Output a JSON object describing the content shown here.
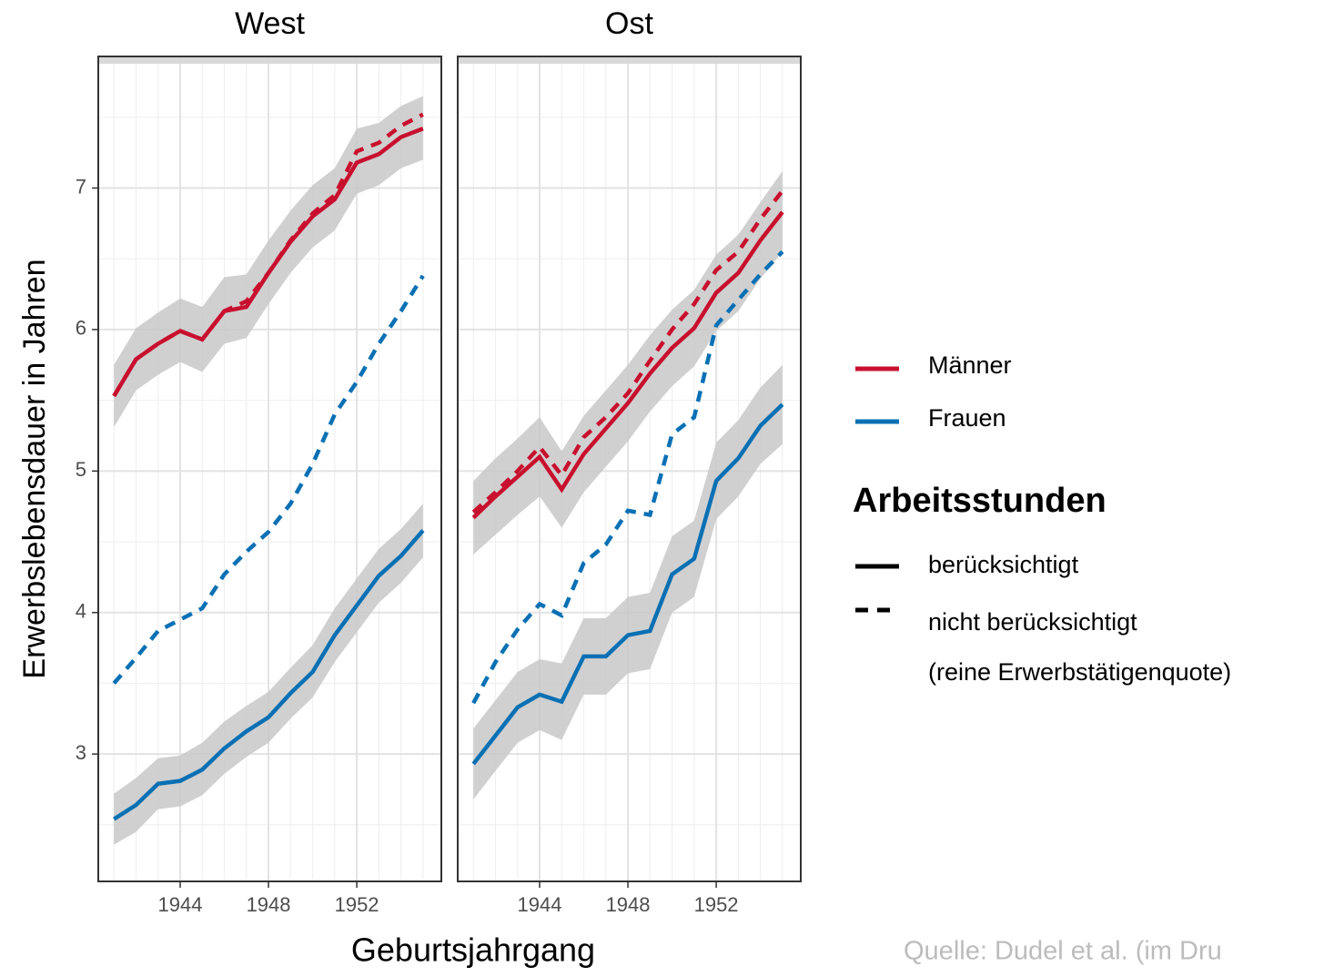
{
  "chart_data": {
    "type": "line",
    "xlabel": "Geburtsjahrgang",
    "ylabel": "Erwerbslebensdauer in Jahren",
    "source": "Quelle: Dudel et al. (im Dru",
    "x": [
      1941,
      1942,
      1943,
      1944,
      1945,
      1946,
      1947,
      1948,
      1949,
      1950,
      1951,
      1952,
      1953,
      1954,
      1955
    ],
    "xlim": [
      1940.29,
      1955.83
    ],
    "ylim": [
      2.1,
      7.93
    ],
    "xticks": [
      1944,
      1948,
      1952
    ],
    "yticks": [
      3,
      4,
      5,
      6,
      7
    ],
    "xminorticks": [
      1941,
      1942,
      1943,
      1945,
      1946,
      1947,
      1949,
      1950,
      1951,
      1953,
      1954,
      1955
    ],
    "yminorticks": [
      2.5,
      3.5,
      4.5,
      5.5,
      6.5,
      7.5
    ],
    "grid": true,
    "legend": {
      "colors": [
        {
          "label": "Männer",
          "color": "#c8102e"
        },
        {
          "label": "Frauen",
          "color": "#0a70b4"
        }
      ],
      "linetypes": {
        "title": "Arbeitsstunden",
        "items": [
          {
            "label": "berücksichtigt",
            "dashed": false
          },
          {
            "label": "nicht berücksichtigt",
            "note": "(reine Erwerbstätigenquote)",
            "dashed": true
          }
        ]
      }
    },
    "panels": [
      {
        "title": "West",
        "series": [
          {
            "group": 0,
            "linetype": 0,
            "values": [
              5.53,
              5.79,
              5.9,
              5.99,
              5.93,
              6.13,
              6.16,
              6.4,
              6.62,
              6.8,
              6.92,
              7.18,
              7.24,
              7.36,
              7.42
            ],
            "lower": [
              5.31,
              5.57,
              5.68,
              5.77,
              5.7,
              5.9,
              5.94,
              6.18,
              6.4,
              6.58,
              6.7,
              6.96,
              7.02,
              7.14,
              7.2
            ],
            "upper": [
              5.75,
              6.01,
              6.12,
              6.22,
              6.16,
              6.37,
              6.39,
              6.63,
              6.84,
              7.02,
              7.14,
              7.42,
              7.46,
              7.58,
              7.65
            ]
          },
          {
            "group": 0,
            "linetype": 1,
            "values": [
              5.53,
              5.79,
              5.9,
              5.99,
              5.93,
              6.13,
              6.2,
              6.4,
              6.63,
              6.82,
              6.95,
              7.26,
              7.32,
              7.44,
              7.52
            ]
          },
          {
            "group": 1,
            "linetype": 0,
            "values": [
              2.54,
              2.64,
              2.79,
              2.81,
              2.89,
              3.04,
              3.16,
              3.26,
              3.43,
              3.58,
              3.84,
              4.05,
              4.26,
              4.4,
              4.58
            ],
            "lower": [
              2.36,
              2.45,
              2.61,
              2.63,
              2.71,
              2.86,
              2.98,
              3.08,
              3.25,
              3.4,
              3.65,
              3.86,
              4.07,
              4.21,
              4.39
            ],
            "upper": [
              2.72,
              2.83,
              2.97,
              2.99,
              3.08,
              3.23,
              3.34,
              3.44,
              3.61,
              3.77,
              4.03,
              4.24,
              4.45,
              4.59,
              4.77
            ]
          },
          {
            "group": 1,
            "linetype": 1,
            "values": [
              3.5,
              3.68,
              3.87,
              3.95,
              4.03,
              4.27,
              4.43,
              4.57,
              4.77,
              5.05,
              5.4,
              5.63,
              5.9,
              6.13,
              6.38
            ]
          }
        ]
      },
      {
        "title": "Ost",
        "series": [
          {
            "group": 0,
            "linetype": 0,
            "values": [
              4.67,
              4.82,
              4.96,
              5.1,
              4.87,
              5.12,
              5.3,
              5.48,
              5.69,
              5.87,
              6.01,
              6.26,
              6.4,
              6.63,
              6.83
            ],
            "lower": [
              4.41,
              4.55,
              4.69,
              4.82,
              4.6,
              4.85,
              5.03,
              5.21,
              5.42,
              5.6,
              5.74,
              5.99,
              6.13,
              6.36,
              6.55
            ],
            "upper": [
              4.93,
              5.09,
              5.23,
              5.38,
              5.14,
              5.39,
              5.57,
              5.75,
              5.96,
              6.14,
              6.28,
              6.53,
              6.67,
              6.9,
              7.12
            ]
          },
          {
            "group": 0,
            "linetype": 1,
            "values": [
              4.71,
              4.85,
              5.0,
              5.17,
              4.97,
              5.24,
              5.38,
              5.55,
              5.78,
              6.0,
              6.18,
              6.42,
              6.55,
              6.78,
              6.98
            ]
          },
          {
            "group": 1,
            "linetype": 0,
            "values": [
              2.93,
              3.13,
              3.33,
              3.42,
              3.37,
              3.69,
              3.69,
              3.84,
              3.87,
              4.27,
              4.38,
              4.93,
              5.09,
              5.32,
              5.47
            ],
            "lower": [
              2.68,
              2.88,
              3.08,
              3.17,
              3.1,
              3.42,
              3.42,
              3.57,
              3.6,
              4.0,
              4.11,
              4.66,
              4.82,
              5.05,
              5.19
            ],
            "upper": [
              3.18,
              3.38,
              3.58,
              3.67,
              3.64,
              3.96,
              3.96,
              4.11,
              4.14,
              4.54,
              4.65,
              5.2,
              5.36,
              5.59,
              5.75
            ]
          },
          {
            "group": 1,
            "linetype": 1,
            "values": [
              3.36,
              3.65,
              3.88,
              4.06,
              3.98,
              4.35,
              4.48,
              4.72,
              4.69,
              5.26,
              5.38,
              6.03,
              6.21,
              6.39,
              6.55
            ]
          }
        ]
      }
    ]
  }
}
